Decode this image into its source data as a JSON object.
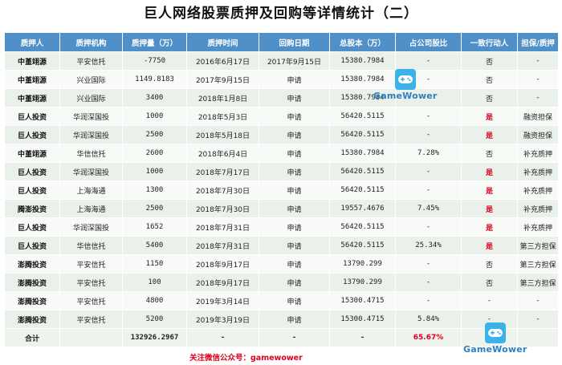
{
  "title": "巨人网络股票质押及回购等详情统计（二）",
  "headers": [
    "质押人",
    "质押机构",
    "质押量（万）",
    "质押时间",
    "回购日期",
    "总股本（万）",
    "占公司股比",
    "一致行动人",
    "担保/质押"
  ],
  "rows": [
    [
      "中堇翊源",
      "平安信托",
      "-7750",
      "2016年6月17日",
      "2017年9月15日",
      "15380.7984",
      "-",
      "否",
      "-"
    ],
    [
      "中堇翊源",
      "兴业国际",
      "1149.8183",
      "2017年9月15日",
      "申请",
      "15380.7984",
      "-",
      "否",
      "-"
    ],
    [
      "中堇翊源",
      "兴业国际",
      "3400",
      "2018年1月8日",
      "申请",
      "15380.7984",
      "-",
      "否",
      "-"
    ],
    [
      "巨人投资",
      "华润深国投",
      "1000",
      "2018年5月3日",
      "申请",
      "56420.5115",
      "-",
      "是",
      "融资担保"
    ],
    [
      "巨人投资",
      "华润深国投",
      "2500",
      "2018年5月18日",
      "申请",
      "56420.5115",
      "-",
      "是",
      "融资担保"
    ],
    [
      "中堇翊源",
      "华信信托",
      "2600",
      "2018年6月4日",
      "申请",
      "15380.7984",
      "7.28%",
      "否",
      "补充质押"
    ],
    [
      "巨人投资",
      "华润深国投",
      "1000",
      "2018年7月17日",
      "申请",
      "56420.5115",
      "-",
      "是",
      "补充质押"
    ],
    [
      "巨人投资",
      "上海海通",
      "1300",
      "2018年7月30日",
      "申请",
      "56420.5115",
      "-",
      "是",
      "补充质押"
    ],
    [
      "腾澎投资",
      "上海海通",
      "2500",
      "2018年7月30日",
      "申请",
      "19557.4676",
      "7.45%",
      "是",
      "补充质押"
    ],
    [
      "巨人投资",
      "华润深国投",
      "1652",
      "2018年7月31日",
      "申请",
      "56420.5115",
      "-",
      "是",
      "补充质押"
    ],
    [
      "巨人投资",
      "华信信托",
      "5400",
      "2018年7月31日",
      "申请",
      "56420.5115",
      "25.34%",
      "是",
      "第三方担保"
    ],
    [
      "澎腾投资",
      "平安信托",
      "1150",
      "2018年9月17日",
      "申请",
      "13790.299",
      "-",
      "否",
      "第三方担保"
    ],
    [
      "澎腾投资",
      "平安信托",
      "100",
      "2018年9月17日",
      "申请",
      "13790.299",
      "-",
      "否",
      "第三方担保"
    ],
    [
      "澎腾投资",
      "平安信托",
      "4800",
      "2019年3月14日",
      "申请",
      "15300.4715",
      "-",
      "-",
      "-"
    ],
    [
      "澎腾投资",
      "平安信托",
      "5200",
      "2019年3月19日",
      "申请",
      "15300.4715",
      "5.84%",
      "-",
      "-"
    ]
  ],
  "total": {
    "label": "合计",
    "pledge_amount": "132926.2967",
    "ratio": "65.67%",
    "dash1": "-",
    "dash2": "-",
    "dash3": "-"
  },
  "note": "关注微信公众号：gamewower",
  "logo": {
    "text": "GameWower",
    "icon": "gamepad-icon",
    "color": "#3db2e8"
  },
  "colors": {
    "header_bg": "#4f90c8",
    "row_odd": "#eaf1ea",
    "row_even": "#f7faf6",
    "accent_red": "#e0001b"
  }
}
